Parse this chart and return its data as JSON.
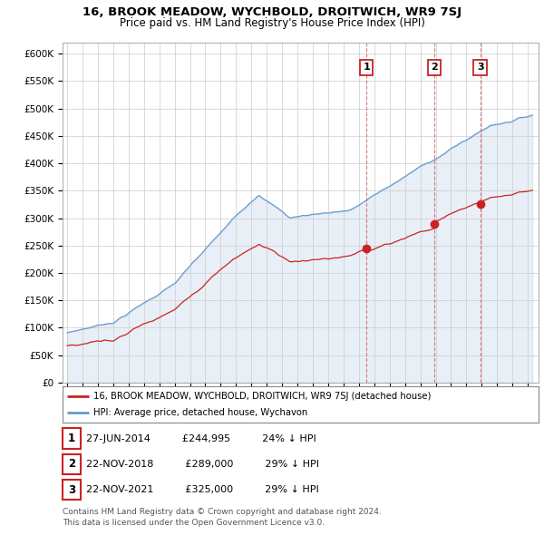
{
  "title": "16, BROOK MEADOW, WYCHBOLD, DROITWICH, WR9 7SJ",
  "subtitle": "Price paid vs. HM Land Registry's House Price Index (HPI)",
  "ylim": [
    0,
    620000
  ],
  "ytick_values": [
    0,
    50000,
    100000,
    150000,
    200000,
    250000,
    300000,
    350000,
    400000,
    450000,
    500000,
    550000,
    600000
  ],
  "xlim": [
    1994.7,
    2025.7
  ],
  "xtick_years": [
    1995,
    1996,
    1997,
    1998,
    1999,
    2000,
    2001,
    2002,
    2003,
    2004,
    2005,
    2006,
    2007,
    2008,
    2009,
    2010,
    2011,
    2012,
    2013,
    2014,
    2015,
    2016,
    2017,
    2018,
    2019,
    2020,
    2021,
    2022,
    2023,
    2024,
    2025
  ],
  "sale_dates_decimal": [
    2014.49,
    2018.9,
    2021.9
  ],
  "sale_prices": [
    244995,
    289000,
    325000
  ],
  "sale_labels": [
    "1",
    "2",
    "3"
  ],
  "hpi_color": "#6699cc",
  "hpi_fill_color": "#ddeeff",
  "property_color": "#cc2222",
  "grid_color": "#cccccc",
  "bg_color": "#ffffff",
  "legend_property_text": "16, BROOK MEADOW, WYCHBOLD, DROITWICH, WR9 7SJ (detached house)",
  "legend_hpi_text": "HPI: Average price, detached house, Wychavon",
  "table_rows": [
    [
      "1",
      "27-JUN-2014",
      "£244,995",
      "24% ↓ HPI"
    ],
    [
      "2",
      "22-NOV-2018",
      "£289,000",
      "29% ↓ HPI"
    ],
    [
      "3",
      "22-NOV-2021",
      "£325,000",
      "29% ↓ HPI"
    ]
  ],
  "footnote": "Contains HM Land Registry data © Crown copyright and database right 2024.\nThis data is licensed under the Open Government Licence v3.0."
}
